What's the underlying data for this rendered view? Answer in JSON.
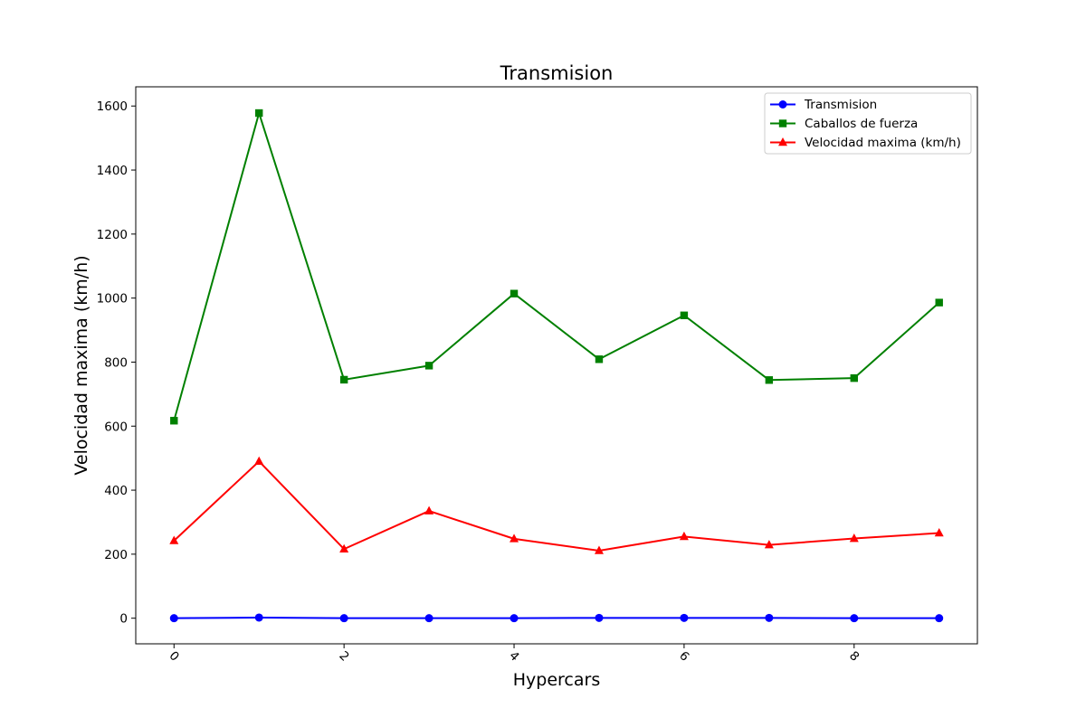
{
  "chart_data": {
    "type": "line",
    "title": "Transmision",
    "xlabel": "Hypercars",
    "ylabel": "Velocidad maxima (km/h)",
    "x": [
      0,
      1,
      2,
      3,
      4,
      5,
      6,
      7,
      8,
      9
    ],
    "xlim": [
      -0.45,
      9.45
    ],
    "ylim": [
      -80,
      1660
    ],
    "xticks": [
      0,
      2,
      4,
      6,
      8
    ],
    "yticks": [
      0,
      200,
      400,
      600,
      800,
      1000,
      1200,
      1400,
      1600
    ],
    "grid": false,
    "legend_position": "top-right",
    "series": [
      {
        "name": "Transmision",
        "color": "#0000ff",
        "marker": "circle",
        "values": [
          0,
          2,
          0,
          0,
          0,
          1,
          1,
          1,
          0,
          0
        ]
      },
      {
        "name": "Caballos de fuerza",
        "color": "#008000",
        "marker": "square",
        "values": [
          617,
          1578,
          745,
          789,
          1014,
          809,
          946,
          744,
          750,
          986
        ]
      },
      {
        "name": "Velocidad maxima (km/h)",
        "color": "#ff0000",
        "marker": "triangle",
        "values": [
          242,
          490,
          216,
          335,
          248,
          211,
          255,
          229,
          249,
          266
        ]
      }
    ]
  }
}
